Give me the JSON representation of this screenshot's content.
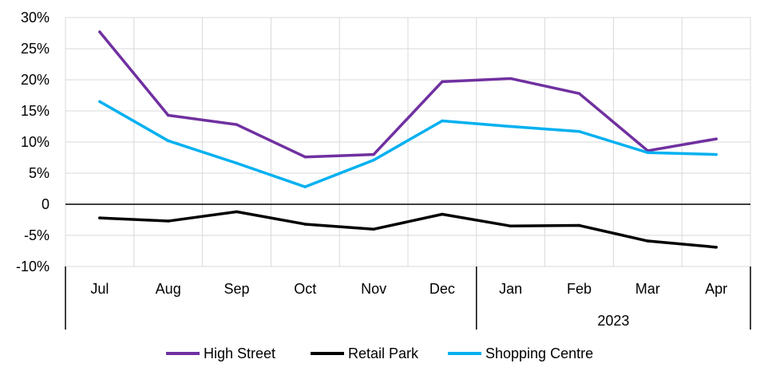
{
  "chart_data": {
    "type": "line",
    "categories": [
      "Jul",
      "Aug",
      "Sep",
      "Oct",
      "Nov",
      "Dec",
      "Jan",
      "Feb",
      "Mar",
      "Apr"
    ],
    "group_labels": [
      "",
      "2023"
    ],
    "ylim": [
      -10,
      30
    ],
    "yticks": [
      30,
      25,
      20,
      15,
      10,
      5,
      0,
      -5,
      -10
    ],
    "ytick_labels": [
      "30%",
      "25%",
      "20%",
      "15%",
      "10%",
      "5%",
      "0",
      "-5%",
      "-10%"
    ],
    "grid": true,
    "legend_position": "bottom",
    "series": [
      {
        "name": "High Street",
        "color": "#7030a0",
        "values": [
          27.7,
          14.3,
          12.8,
          7.6,
          8.0,
          19.7,
          20.2,
          17.8,
          8.6,
          10.5
        ]
      },
      {
        "name": "Retail Park",
        "color": "#000000",
        "values": [
          -2.2,
          -2.7,
          -1.2,
          -3.2,
          -4.0,
          -1.6,
          -3.5,
          -3.4,
          -5.9,
          -6.9
        ]
      },
      {
        "name": "Shopping Centre",
        "color": "#00b0f0",
        "values": [
          16.5,
          10.2,
          6.6,
          2.8,
          7.1,
          13.4,
          12.5,
          11.7,
          8.3,
          8.0
        ]
      }
    ]
  }
}
